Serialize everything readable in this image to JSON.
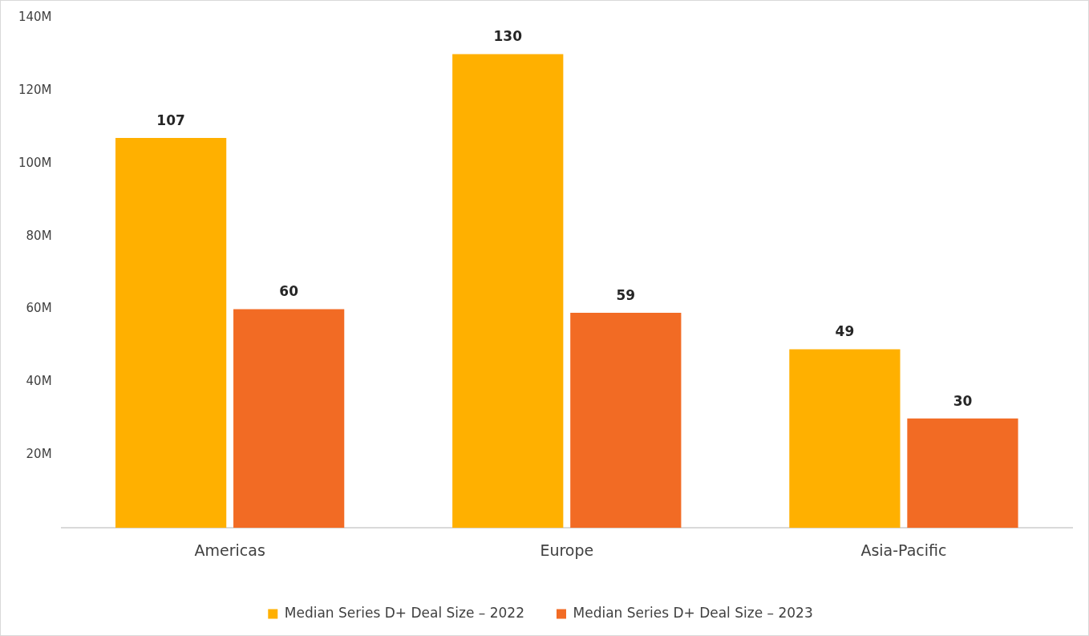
{
  "chart_data": {
    "type": "bar",
    "categories": [
      "Americas",
      "Europe",
      "Asia-Pacific"
    ],
    "series": [
      {
        "name": "Median Series D+ Deal Size – 2022",
        "color": "#ffb000",
        "values": [
          107,
          130,
          49
        ]
      },
      {
        "name": "Median Series D+ Deal Size – 2023",
        "color": "#f26b24",
        "values": [
          60,
          59,
          30
        ]
      }
    ],
    "ylim": [
      0,
      140
    ],
    "yticks": [
      {
        "value": 20,
        "label": "20M"
      },
      {
        "value": 40,
        "label": "40M"
      },
      {
        "value": 60,
        "label": "60M"
      },
      {
        "value": 80,
        "label": "80M"
      },
      {
        "value": 100,
        "label": "100M"
      },
      {
        "value": 120,
        "label": "120M"
      },
      {
        "value": 140,
        "label": "140M"
      }
    ],
    "grid": false,
    "legend": "bottom",
    "data_labels": true
  }
}
